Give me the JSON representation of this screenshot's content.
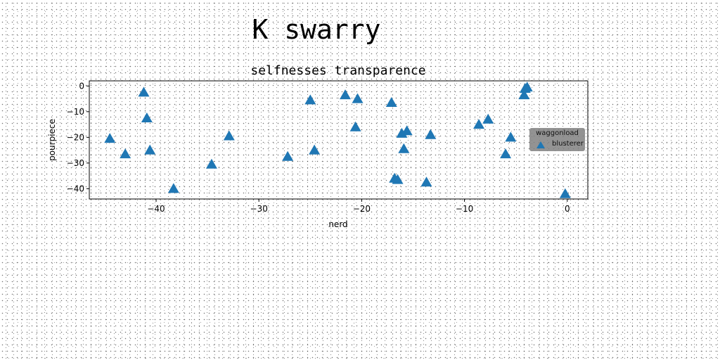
{
  "chart_data": {
    "type": "scatter",
    "suptitle": "K swarry",
    "title": "selfnesses transparence",
    "xlabel": "nerd",
    "ylabel": "pourpiece",
    "xlim": [
      -46.5,
      2
    ],
    "ylim": [
      -44,
      2
    ],
    "xticks": [
      -40,
      -30,
      -20,
      -10,
      0
    ],
    "yticks": [
      0,
      -10,
      -20,
      -30,
      -40
    ],
    "grid": false,
    "legend": {
      "title": "waggonload",
      "placement": "right",
      "entries": [
        "blusterer"
      ]
    },
    "marker": "triangle",
    "color": "#1f77b4",
    "series": [
      {
        "name": "blusterer",
        "points": [
          [
            -44.5,
            -20.5
          ],
          [
            -43,
            -26.5
          ],
          [
            -41.2,
            -2.5
          ],
          [
            -40.9,
            -12.5
          ],
          [
            -40.6,
            -25
          ],
          [
            -38.3,
            -40
          ],
          [
            -34.6,
            -30.5
          ],
          [
            -32.9,
            -19.5
          ],
          [
            -27.2,
            -27.5
          ],
          [
            -25,
            -5.5
          ],
          [
            -24.6,
            -25
          ],
          [
            -21.6,
            -3.5
          ],
          [
            -20.4,
            -5
          ],
          [
            -20.6,
            -16
          ],
          [
            -17.1,
            -6.5
          ],
          [
            -16.8,
            -36
          ],
          [
            -16.5,
            -36.5
          ],
          [
            -16.1,
            -18.5
          ],
          [
            -15.6,
            -17.5
          ],
          [
            -15.9,
            -24.5
          ],
          [
            -13.7,
            -37.5
          ],
          [
            -13.3,
            -19
          ],
          [
            -8.6,
            -15
          ],
          [
            -7.7,
            -13
          ],
          [
            -5.5,
            -20
          ],
          [
            -6,
            -26.5
          ],
          [
            -3.9,
            -0.5
          ],
          [
            -4.1,
            -1
          ],
          [
            -4.2,
            -3.5
          ],
          [
            -0.2,
            -42
          ]
        ]
      }
    ]
  }
}
